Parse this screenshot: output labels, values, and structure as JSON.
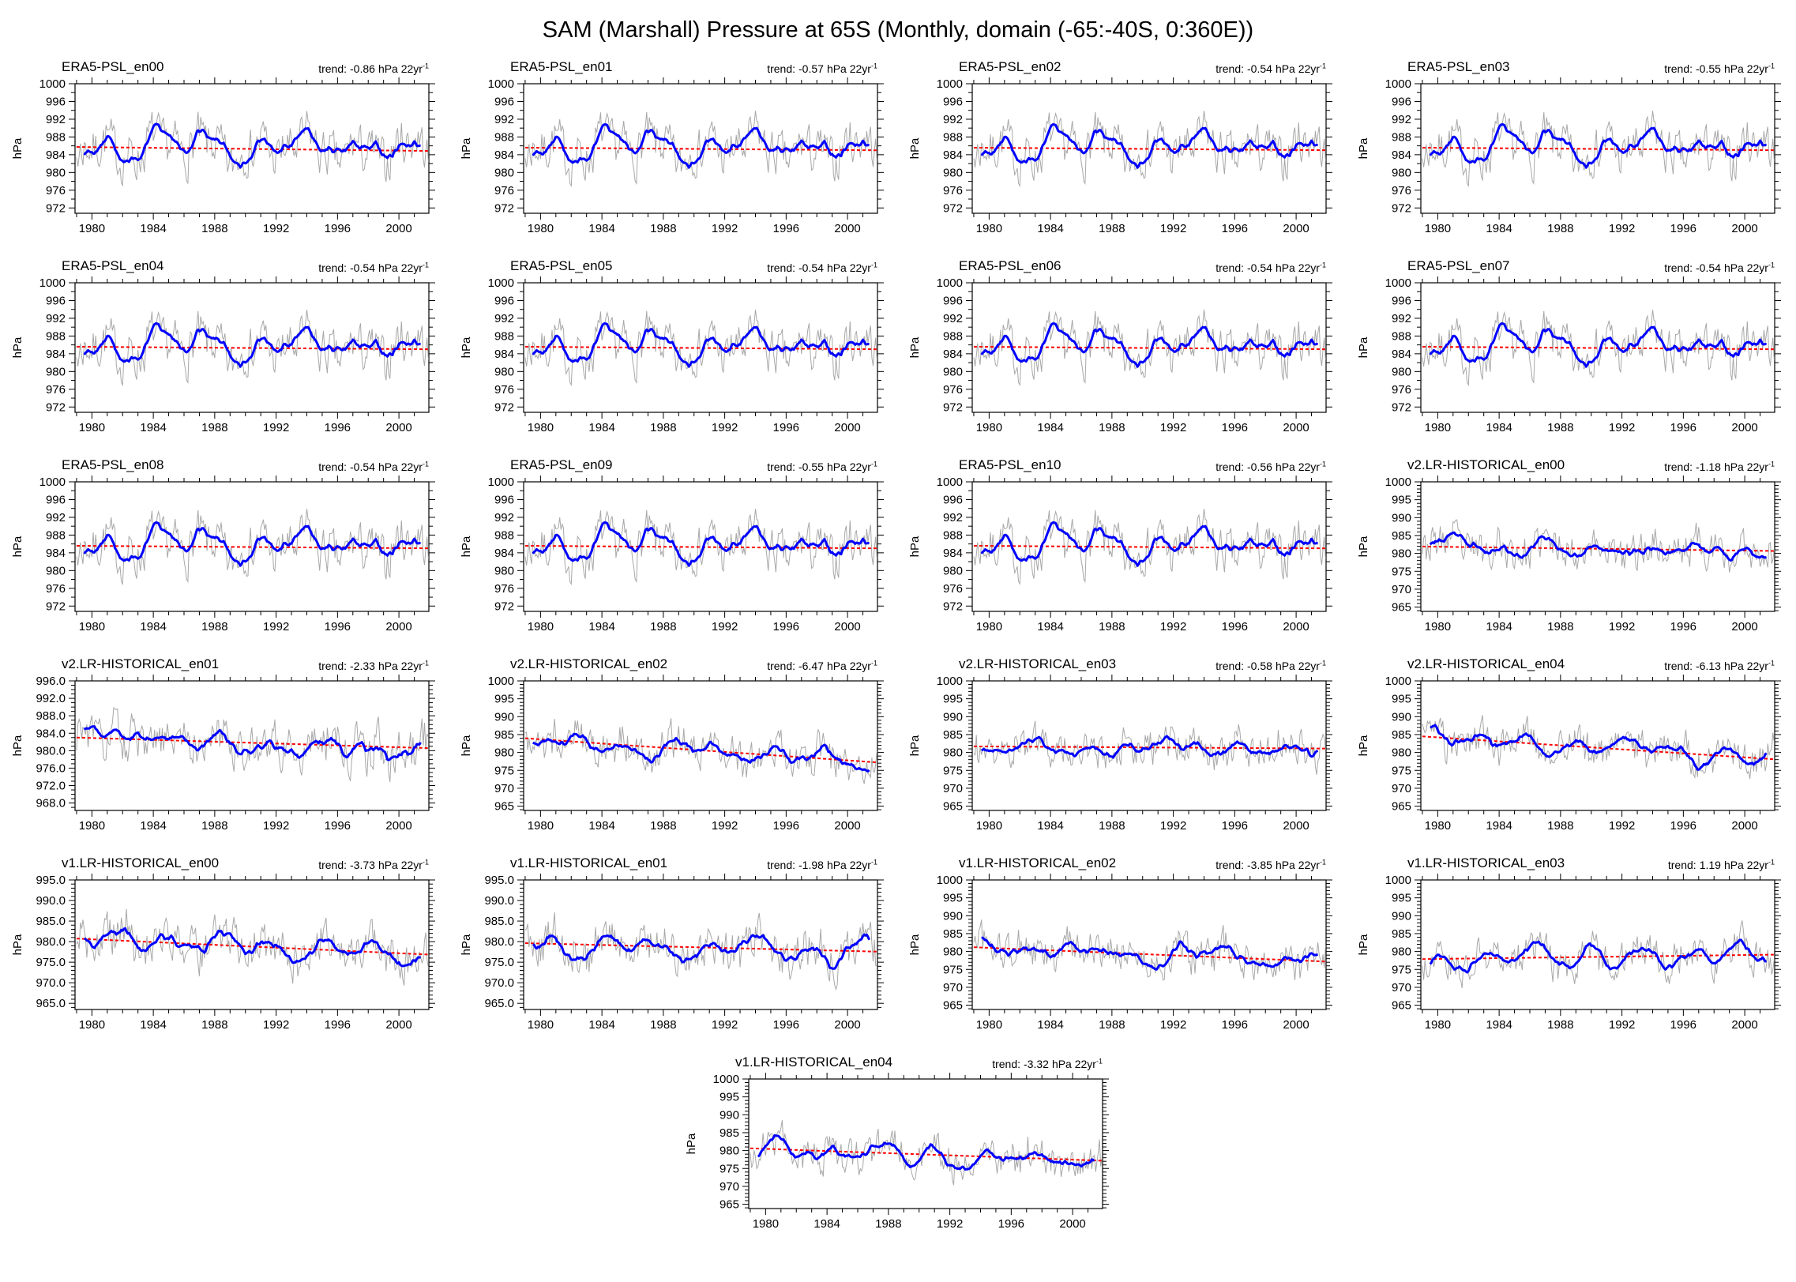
{
  "title": "SAM (Marshall) Pressure at 65S (Monthly, domain (-65:-40S, 0:360E))",
  "labels": {
    "trend_prefix": "trend:",
    "trend_unit": "hPa 22yr",
    "trend_sup": "-1",
    "y_axis": "hPa"
  },
  "colors": {
    "monthly_line": "#a8a8a8",
    "smoothed_line": "#0000ff",
    "trend_line": "#ff0000",
    "frame": "#000000"
  },
  "x_axis": {
    "tick_values": [
      1980,
      1984,
      1988,
      1992,
      1996,
      2000
    ],
    "tick_labels": [
      "1980",
      "1984",
      "1988",
      "1992",
      "1996",
      "2000"
    ],
    "minor_step_years": 1,
    "range": [
      1978.9,
      2001.95
    ]
  },
  "axis_presets": {
    "era5": {
      "ytick_values": [
        1000,
        996,
        992,
        988,
        984,
        980,
        976,
        972
      ],
      "ytick_labels": [
        "1000",
        "996",
        "992",
        "988",
        "984",
        "980",
        "976",
        "972"
      ],
      "minor_step": 2,
      "ylim": [
        970.8,
        1000
      ]
    },
    "step5int": {
      "ytick_values": [
        1000,
        995,
        990,
        985,
        980,
        975,
        970,
        965
      ],
      "ytick_labels": [
        "1000",
        "995",
        "990",
        "985",
        "980",
        "975",
        "970",
        "965"
      ],
      "minor_step": 1,
      "ylim": [
        963.8,
        1000
      ]
    },
    "step4dec": {
      "ytick_values": [
        996,
        992,
        988,
        984,
        980,
        976,
        972,
        968
      ],
      "ytick_labels": [
        "996.0",
        "992.0",
        "988.0",
        "984.0",
        "980.0",
        "976.0",
        "972.0",
        "968.0"
      ],
      "minor_step": 1,
      "ylim": [
        966.3,
        996
      ]
    },
    "step5dec": {
      "ytick_values": [
        995,
        990,
        985,
        980,
        975,
        970,
        965
      ],
      "ytick_labels": [
        "995.0",
        "990.0",
        "985.0",
        "980.0",
        "975.0",
        "970.0",
        "965.0"
      ],
      "minor_step": 1,
      "ylim": [
        963.5,
        995
      ]
    }
  },
  "panel_series": [
    {
      "name": "monthly-pressure",
      "color": "#a8a8a8",
      "style": "thin solid"
    },
    {
      "name": "12-month-smoothed-pressure",
      "color": "#0000ff",
      "style": "thick solid"
    },
    {
      "name": "linear-trend",
      "color": "#ff0000",
      "style": "dotted"
    }
  ],
  "chart_data": [
    {
      "type": "line",
      "title": "ERA5-PSL_en00",
      "trend_text": "-0.86",
      "trend": -0.86,
      "mean": 985.3,
      "axis": "era5",
      "seed": 7
    },
    {
      "type": "line",
      "title": "ERA5-PSL_en01",
      "trend_text": "-0.57",
      "trend": -0.57,
      "mean": 985.3,
      "axis": "era5",
      "seed": 7
    },
    {
      "type": "line",
      "title": "ERA5-PSL_en02",
      "trend_text": "-0.54",
      "trend": -0.54,
      "mean": 985.3,
      "axis": "era5",
      "seed": 7
    },
    {
      "type": "line",
      "title": "ERA5-PSL_en03",
      "trend_text": "-0.55",
      "trend": -0.55,
      "mean": 985.3,
      "axis": "era5",
      "seed": 7
    },
    {
      "type": "line",
      "title": "ERA5-PSL_en04",
      "trend_text": "-0.54",
      "trend": -0.54,
      "mean": 985.3,
      "axis": "era5",
      "seed": 7
    },
    {
      "type": "line",
      "title": "ERA5-PSL_en05",
      "trend_text": "-0.54",
      "trend": -0.54,
      "mean": 985.3,
      "axis": "era5",
      "seed": 7
    },
    {
      "type": "line",
      "title": "ERA5-PSL_en06",
      "trend_text": "-0.54",
      "trend": -0.54,
      "mean": 985.3,
      "axis": "era5",
      "seed": 7
    },
    {
      "type": "line",
      "title": "ERA5-PSL_en07",
      "trend_text": "-0.54",
      "trend": -0.54,
      "mean": 985.3,
      "axis": "era5",
      "seed": 7
    },
    {
      "type": "line",
      "title": "ERA5-PSL_en08",
      "trend_text": "-0.54",
      "trend": -0.54,
      "mean": 985.3,
      "axis": "era5",
      "seed": 7
    },
    {
      "type": "line",
      "title": "ERA5-PSL_en09",
      "trend_text": "-0.55",
      "trend": -0.55,
      "mean": 985.3,
      "axis": "era5",
      "seed": 7
    },
    {
      "type": "line",
      "title": "ERA5-PSL_en10",
      "trend_text": "-0.56",
      "trend": -0.56,
      "mean": 985.3,
      "axis": "era5",
      "seed": 7
    },
    {
      "type": "line",
      "title": "v2.LR-HISTORICAL_en00",
      "trend_text": "-1.18",
      "trend": -1.18,
      "mean": 981.3,
      "axis": "step5int",
      "seed": 23
    },
    {
      "type": "line",
      "title": "v2.LR-HISTORICAL_en01",
      "trend_text": "-2.33",
      "trend": -2.33,
      "mean": 981.8,
      "axis": "step4dec",
      "seed": 31
    },
    {
      "type": "line",
      "title": "v2.LR-HISTORICAL_en02",
      "trend_text": "-6.47",
      "trend": -6.47,
      "mean": 980.6,
      "axis": "step5int",
      "seed": 47
    },
    {
      "type": "line",
      "title": "v2.LR-HISTORICAL_en03",
      "trend_text": "-0.58",
      "trend": -0.58,
      "mean": 981.4,
      "axis": "step5int",
      "seed": 59
    },
    {
      "type": "line",
      "title": "v2.LR-HISTORICAL_en04",
      "trend_text": "-6.13",
      "trend": -6.13,
      "mean": 981.3,
      "axis": "step5int",
      "seed": 61
    },
    {
      "type": "line",
      "title": "v1.LR-HISTORICAL_en00",
      "trend_text": "-3.73",
      "trend": -3.73,
      "mean": 978.8,
      "axis": "step5dec",
      "seed": 83
    },
    {
      "type": "line",
      "title": "v1.LR-HISTORICAL_en01",
      "trend_text": "-1.98",
      "trend": -1.98,
      "mean": 978.6,
      "axis": "step5dec",
      "seed": 89
    },
    {
      "type": "line",
      "title": "v1.LR-HISTORICAL_en02",
      "trend_text": "-3.85",
      "trend": -3.85,
      "mean": 979.2,
      "axis": "step5int",
      "seed": 97
    },
    {
      "type": "line",
      "title": "v1.LR-HISTORICAL_en03",
      "trend_text": "1.19",
      "trend": 1.19,
      "mean": 978.5,
      "axis": "step5int",
      "seed": 103
    },
    {
      "type": "line",
      "title": "v1.LR-HISTORICAL_en04",
      "trend_text": "-3.32",
      "trend": -3.32,
      "mean": 978.9,
      "axis": "step5int",
      "seed": 109
    }
  ]
}
